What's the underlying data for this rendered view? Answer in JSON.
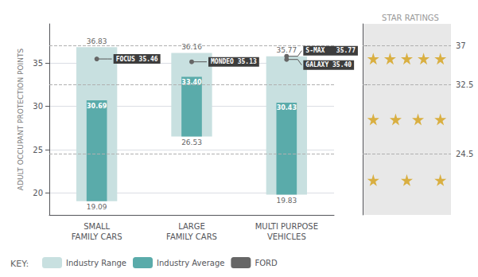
{
  "chart_data": {
    "type": "bar",
    "categories": [
      "SMALL\nFAMILY CARS",
      "LARGE\nFAMILY CARS",
      "MULTI PURPOSE\nVEHICLES"
    ],
    "ylabel": "ADULT OCCUPANT PROTECTION POINTS",
    "ylim": [
      17.5,
      39.5
    ],
    "yticks": [
      20,
      25,
      30,
      35
    ],
    "grid": true,
    "legend_title": "KEY:",
    "series": [
      {
        "name": "Industry Range",
        "type": "range",
        "color": "#c8e0e0",
        "low": [
          19.09,
          26.53,
          19.83
        ],
        "high": [
          36.83,
          36.16,
          35.77
        ],
        "data_labels": true
      },
      {
        "name": "Industry Average",
        "type": "bar",
        "color": "#5aabaa",
        "values": [
          30.69,
          33.4,
          30.43
        ],
        "value_labels": [
          "30.69",
          "33.40",
          "30.43"
        ],
        "data_labels": true
      },
      {
        "name": "FORD",
        "type": "scatter",
        "color": "#666666",
        "line_color": "#555555",
        "label_color": "#3d3d3d",
        "label_text_color": "#ffffff",
        "points": [
          {
            "category": "SMALL\nFAMILY CARS",
            "y": 35.46,
            "label": "FOCUS 35.46"
          },
          {
            "category": "LARGE\nFAMILY CARS",
            "y": 35.13,
            "label": "MONDEO 35.13"
          },
          {
            "category": "MULTI PURPOSE\nVEHICLES",
            "y": 35.77,
            "label": "S-MAX   35.77"
          },
          {
            "category": "MULTI PURPOSE\nVEHICLES",
            "y": 35.4,
            "label": "GALAXY 35.40"
          }
        ]
      }
    ],
    "reference_lines": [
      37.0,
      32.5,
      24.5
    ],
    "star_panel_title": "STAR RATINGS",
    "star_panel_color": "#e8e8e8",
    "star_color": "#d4a017",
    "star_ratings": [
      {
        "stars": 5,
        "y": 35.5
      },
      {
        "stars": 4,
        "y": 28.5
      },
      {
        "stars": 3,
        "y": 21.5
      }
    ],
    "y2lim": [
      17.5,
      39.5
    ],
    "y2ticks": [
      37,
      32.5,
      24.5
    ]
  }
}
